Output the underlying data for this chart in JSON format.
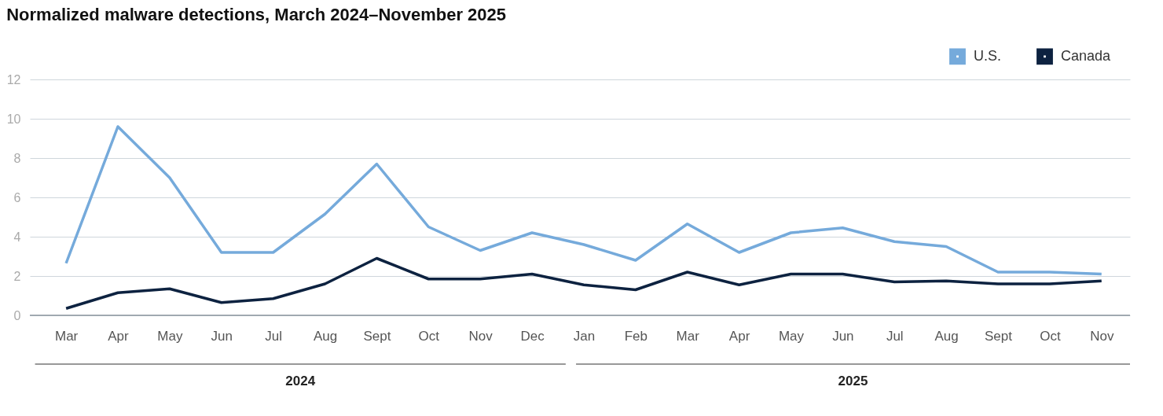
{
  "chart_data": {
    "type": "line",
    "title": "Normalized malware detections, March 2024–November 2025",
    "categories": [
      "Mar",
      "Apr",
      "May",
      "Jun",
      "Jul",
      "Aug",
      "Sept",
      "Oct",
      "Nov",
      "Dec",
      "Jan",
      "Feb",
      "Mar",
      "Apr",
      "May",
      "Jun",
      "Jul",
      "Aug",
      "Sept",
      "Oct",
      "Nov"
    ],
    "series": [
      {
        "name": "U.S.",
        "color": "#75aadb",
        "values": [
          2.65,
          9.6,
          7.0,
          3.2,
          3.2,
          5.15,
          7.7,
          4.5,
          3.3,
          4.2,
          3.6,
          2.8,
          4.65,
          3.2,
          4.2,
          4.45,
          3.75,
          3.5,
          2.2,
          2.2,
          2.1
        ]
      },
      {
        "name": "Canada",
        "color": "#0d2240",
        "values": [
          0.35,
          1.15,
          1.35,
          0.65,
          0.85,
          1.6,
          2.9,
          1.85,
          1.85,
          2.1,
          1.55,
          1.3,
          2.2,
          1.55,
          2.1,
          2.1,
          1.7,
          1.75,
          1.6,
          1.6,
          1.75
        ]
      }
    ],
    "ylim": [
      0,
      12
    ],
    "yticks": [
      0,
      2,
      4,
      6,
      8,
      10,
      12
    ],
    "grid": "y",
    "legend": "top right",
    "marker": "none",
    "line_style": "solid",
    "annotations": [
      "2024",
      "2025"
    ]
  }
}
